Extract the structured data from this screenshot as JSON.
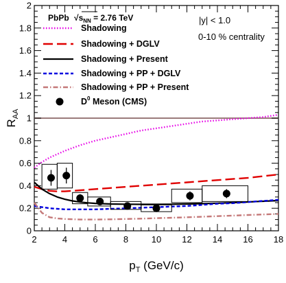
{
  "chart_data": {
    "type": "line",
    "title": "",
    "xlabel": "p_T (GeV/c)",
    "ylabel": "R_AA",
    "xlim": [
      2,
      18
    ],
    "ylim": [
      0,
      2
    ],
    "x_ticks": [
      2,
      4,
      6,
      8,
      10,
      12,
      14,
      16,
      18
    ],
    "y_ticks": [
      0,
      0.2,
      0.4,
      0.6,
      0.8,
      1,
      1.2,
      1.4,
      1.6,
      1.8,
      2
    ],
    "grid": false,
    "legend_position": "top-left",
    "reference_line": {
      "y": 1,
      "color": "#9a7a7a"
    },
    "annotations": {
      "system": "PbPb",
      "energy_prefix": "√s",
      "energy_sub": "NN",
      "energy_value": "= 2.76 TeV",
      "rapidity": "|y| < 1.0",
      "centrality": "0-10 % centrality"
    },
    "series": [
      {
        "name": "Shadowing",
        "color": "#e600e6",
        "style": "dotted",
        "x": [
          2,
          2.5,
          3,
          3.5,
          4,
          5,
          6,
          7,
          8,
          9,
          10,
          11,
          12,
          13,
          14,
          15,
          16,
          17,
          18
        ],
        "y": [
          0.56,
          0.61,
          0.65,
          0.68,
          0.71,
          0.76,
          0.8,
          0.83,
          0.86,
          0.89,
          0.91,
          0.93,
          0.95,
          0.97,
          0.98,
          0.99,
          1.0,
          1.01,
          1.03
        ]
      },
      {
        "name": "Shadowing + DGLV",
        "color": "#e00000",
        "style": "dashed",
        "x": [
          2,
          2.5,
          3,
          3.5,
          4,
          4.5,
          5,
          6,
          7,
          8,
          9,
          10,
          11,
          12,
          13,
          14,
          15,
          16,
          17,
          18
        ],
        "y": [
          0.39,
          0.37,
          0.355,
          0.35,
          0.35,
          0.355,
          0.36,
          0.37,
          0.38,
          0.39,
          0.4,
          0.41,
          0.42,
          0.43,
          0.44,
          0.45,
          0.46,
          0.47,
          0.485,
          0.5
        ]
      },
      {
        "name": "Shadowing + Present",
        "color": "#000000",
        "style": "solid",
        "x": [
          2,
          2.5,
          3,
          3.5,
          4,
          4.5,
          5,
          5.5,
          6,
          7,
          8,
          9,
          10,
          11,
          12,
          13,
          14,
          15,
          16,
          17,
          18
        ],
        "y": [
          0.43,
          0.37,
          0.33,
          0.3,
          0.28,
          0.265,
          0.255,
          0.248,
          0.243,
          0.238,
          0.236,
          0.235,
          0.235,
          0.236,
          0.238,
          0.241,
          0.245,
          0.25,
          0.256,
          0.262,
          0.268
        ]
      },
      {
        "name": "Shadowing + PP + DGLV",
        "color": "#0000e0",
        "style": "dashed-short",
        "x": [
          2,
          3,
          4,
          5,
          6,
          7,
          8,
          9,
          10,
          11,
          12,
          13,
          14,
          15,
          16,
          17,
          18
        ],
        "y": [
          0.22,
          0.2,
          0.19,
          0.19,
          0.19,
          0.195,
          0.2,
          0.205,
          0.21,
          0.215,
          0.22,
          0.23,
          0.24,
          0.245,
          0.255,
          0.265,
          0.275
        ]
      },
      {
        "name": "Shadowing + PP + Present",
        "color": "#c47878",
        "style": "dash-dot",
        "x": [
          2,
          2.5,
          3,
          3.5,
          4,
          5,
          6,
          7,
          8,
          9,
          10,
          11,
          12,
          13,
          14,
          15,
          16,
          17,
          18
        ],
        "y": [
          0.25,
          0.16,
          0.12,
          0.11,
          0.105,
          0.1,
          0.1,
          0.102,
          0.105,
          0.108,
          0.112,
          0.116,
          0.12,
          0.125,
          0.13,
          0.135,
          0.14,
          0.145,
          0.15
        ]
      }
    ],
    "data_series": {
      "name_main": "D",
      "name_sup": "0",
      "name_rest": " Meson (CMS)",
      "color": "#000000",
      "points": [
        {
          "x": 3.1,
          "y": 0.47,
          "stat_err": 0.07,
          "xlo": 2.5,
          "xhi": 3.5,
          "sys_lo": 0.37,
          "sys_hi": 0.59
        },
        {
          "x": 4.1,
          "y": 0.49,
          "stat_err": 0.07,
          "xlo": 3.5,
          "xhi": 4.5,
          "sys_lo": 0.38,
          "sys_hi": 0.6
        },
        {
          "x": 5.0,
          "y": 0.29,
          "stat_err": 0.035,
          "xlo": 4.5,
          "xhi": 5.5,
          "sys_lo": 0.24,
          "sys_hi": 0.34
        },
        {
          "x": 6.3,
          "y": 0.26,
          "stat_err": 0.03,
          "xlo": 5.5,
          "xhi": 7.0,
          "sys_lo": 0.22,
          "sys_hi": 0.3
        },
        {
          "x": 8.1,
          "y": 0.22,
          "stat_err": 0.03,
          "xlo": 7.0,
          "xhi": 9.0,
          "sys_lo": 0.19,
          "sys_hi": 0.26
        },
        {
          "x": 10.0,
          "y": 0.2,
          "stat_err": 0.03,
          "xlo": 9.0,
          "xhi": 11.0,
          "sys_lo": 0.17,
          "sys_hi": 0.23
        },
        {
          "x": 12.2,
          "y": 0.31,
          "stat_err": 0.04,
          "xlo": 11.0,
          "xhi": 13.0,
          "sys_lo": 0.25,
          "sys_hi": 0.37
        },
        {
          "x": 14.6,
          "y": 0.33,
          "stat_err": 0.04,
          "xlo": 13.0,
          "xhi": 16.0,
          "sys_lo": 0.26,
          "sys_hi": 0.4
        }
      ]
    }
  }
}
